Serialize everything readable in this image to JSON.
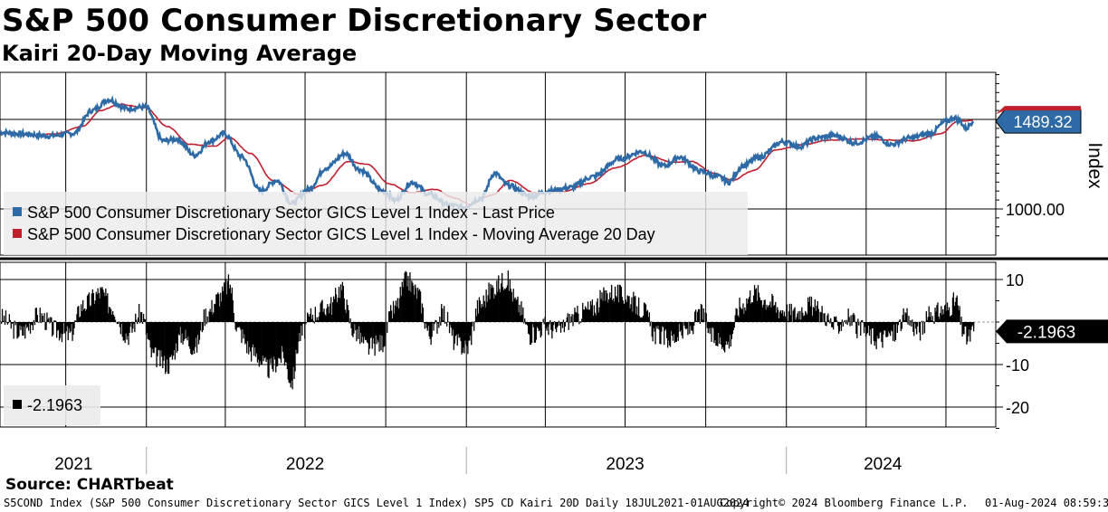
{
  "header": {
    "title": "S&P 500 Consumer Discretionary Sector",
    "subtitle": "Kairi 20-Day Moving Average"
  },
  "legend": {
    "price": "S&P 500 Consumer Discretionary Sector GICS Level 1 Index - Last Price",
    "ma": "S&P 500 Consumer Discretionary Sector GICS Level 1 Index - Moving Average 20 Day",
    "kairi": "-2.1963"
  },
  "footer": {
    "source": "Source: CHARTbeat",
    "description": "S5COND Index (S&P 500 Consumer Discretionary Sector GICS Level 1 Index) SP5 CD Kairi 20D  Daily 18JUL2021-01AUG2024",
    "copyright": "Copyright© 2024 Bloomberg Finance L.P.",
    "timestamp": "01-Aug-2024 08:59:30"
  },
  "colors": {
    "price": "#2e6aa5",
    "ma": "#c0202e",
    "kairi": "#000000"
  },
  "chart_data": [
    {
      "type": "line",
      "axis_label": "Index",
      "ylim": [
        800,
        1800
      ],
      "yticks": [
        {
          "value": 1000,
          "label": "1000.00"
        }
      ],
      "last_value_label": "1489.32",
      "years": [
        "2021",
        "2022",
        "2023",
        "2024"
      ],
      "year_starts": [
        "2022-01-01",
        "2023-01-01",
        "2024-01-01"
      ],
      "grid": true,
      "legend_position": "bottom-left",
      "series": [
        {
          "name": "S&P 500 Consumer Discretionary Sector GICS Level 1 Index - Last Price",
          "color": "#2e6aa5",
          "points": [
            [
              "2021-07-18",
              1428
            ],
            [
              "2021-08-15",
              1418
            ],
            [
              "2021-09-12",
              1408
            ],
            [
              "2021-10-10",
              1422
            ],
            [
              "2021-10-31",
              1550
            ],
            [
              "2021-11-19",
              1610
            ],
            [
              "2021-12-10",
              1560
            ],
            [
              "2021-12-31",
              1570
            ],
            [
              "2022-01-20",
              1380
            ],
            [
              "2022-02-05",
              1390
            ],
            [
              "2022-02-25",
              1300
            ],
            [
              "2022-03-15",
              1380
            ],
            [
              "2022-03-31",
              1420
            ],
            [
              "2022-04-20",
              1290
            ],
            [
              "2022-05-11",
              1100
            ],
            [
              "2022-05-30",
              1160
            ],
            [
              "2022-06-16",
              1030
            ],
            [
              "2022-07-05",
              1110
            ],
            [
              "2022-07-25",
              1230
            ],
            [
              "2022-08-16",
              1310
            ],
            [
              "2022-09-01",
              1220
            ],
            [
              "2022-09-28",
              1100
            ],
            [
              "2022-10-12",
              1050
            ],
            [
              "2022-10-31",
              1150
            ],
            [
              "2022-11-20",
              1080
            ],
            [
              "2022-12-13",
              1020
            ],
            [
              "2022-12-28",
              1010
            ],
            [
              "2023-01-18",
              1060
            ],
            [
              "2023-02-02",
              1200
            ],
            [
              "2023-02-18",
              1130
            ],
            [
              "2023-03-15",
              1070
            ],
            [
              "2023-04-05",
              1100
            ],
            [
              "2023-04-30",
              1120
            ],
            [
              "2023-05-25",
              1180
            ],
            [
              "2023-06-25",
              1280
            ],
            [
              "2023-07-20",
              1320
            ],
            [
              "2023-08-15",
              1240
            ],
            [
              "2023-09-01",
              1290
            ],
            [
              "2023-09-25",
              1210
            ],
            [
              "2023-10-15",
              1180
            ],
            [
              "2023-10-27",
              1150
            ],
            [
              "2023-11-12",
              1240
            ],
            [
              "2023-12-01",
              1290
            ],
            [
              "2023-12-28",
              1375
            ],
            [
              "2024-01-17",
              1350
            ],
            [
              "2024-02-03",
              1395
            ],
            [
              "2024-02-25",
              1410
            ],
            [
              "2024-03-20",
              1370
            ],
            [
              "2024-04-12",
              1405
            ],
            [
              "2024-04-30",
              1360
            ],
            [
              "2024-05-20",
              1395
            ],
            [
              "2024-06-12",
              1420
            ],
            [
              "2024-07-02",
              1490
            ],
            [
              "2024-07-10",
              1510
            ],
            [
              "2024-07-16",
              1495
            ],
            [
              "2024-07-24",
              1450
            ],
            [
              "2024-08-01",
              1489.32
            ]
          ]
        },
        {
          "name": "S&P 500 Consumer Discretionary Sector GICS Level 1 Index - Moving Average 20 Day",
          "color": "#c0202e",
          "points": [
            [
              "2021-07-18",
              1425
            ],
            [
              "2021-08-25",
              1412
            ],
            [
              "2021-09-20",
              1420
            ],
            [
              "2021-10-20",
              1460
            ],
            [
              "2021-11-10",
              1550
            ],
            [
              "2021-12-01",
              1585
            ],
            [
              "2021-12-31",
              1565
            ],
            [
              "2022-01-25",
              1460
            ],
            [
              "2022-02-20",
              1360
            ],
            [
              "2022-03-20",
              1350
            ],
            [
              "2022-04-05",
              1400
            ],
            [
              "2022-04-30",
              1310
            ],
            [
              "2022-05-25",
              1160
            ],
            [
              "2022-06-25",
              1080
            ],
            [
              "2022-07-20",
              1130
            ],
            [
              "2022-08-20",
              1265
            ],
            [
              "2022-09-10",
              1250
            ],
            [
              "2022-10-05",
              1140
            ],
            [
              "2022-10-31",
              1090
            ],
            [
              "2022-11-25",
              1110
            ],
            [
              "2022-12-20",
              1060
            ],
            [
              "2023-01-05",
              1025
            ],
            [
              "2023-01-31",
              1080
            ],
            [
              "2023-02-20",
              1160
            ],
            [
              "2023-03-20",
              1090
            ],
            [
              "2023-04-20",
              1095
            ],
            [
              "2023-05-20",
              1140
            ],
            [
              "2023-06-20",
              1230
            ],
            [
              "2023-07-25",
              1300
            ],
            [
              "2023-08-25",
              1260
            ],
            [
              "2023-09-15",
              1265
            ],
            [
              "2023-10-10",
              1200
            ],
            [
              "2023-10-31",
              1160
            ],
            [
              "2023-11-25",
              1215
            ],
            [
              "2023-12-20",
              1330
            ],
            [
              "2024-01-20",
              1360
            ],
            [
              "2024-02-20",
              1385
            ],
            [
              "2024-03-25",
              1390
            ],
            [
              "2024-04-25",
              1385
            ],
            [
              "2024-05-25",
              1380
            ],
            [
              "2024-06-25",
              1420
            ],
            [
              "2024-07-15",
              1490
            ],
            [
              "2024-08-01",
              1495
            ]
          ]
        }
      ]
    },
    {
      "type": "bar",
      "name": "Kairi 20D",
      "ylim": [
        -25,
        12
      ],
      "yticks": [
        10,
        -10,
        -20
      ],
      "zero_line": 0,
      "last_value_label": "-2.1963",
      "series": [
        {
          "name": "-2.1963",
          "color": "#000000",
          "points": [
            [
              "2021-07-18",
              1.0
            ],
            [
              "2021-08-10",
              -2.5
            ],
            [
              "2021-08-31",
              1.5
            ],
            [
              "2021-09-20",
              -2.0
            ],
            [
              "2021-10-05",
              -3.0
            ],
            [
              "2021-10-20",
              4.0
            ],
            [
              "2021-11-10",
              7.0
            ],
            [
              "2021-11-20",
              4.0
            ],
            [
              "2021-12-10",
              -3.0
            ],
            [
              "2021-12-25",
              2.0
            ],
            [
              "2022-01-08",
              -8.0
            ],
            [
              "2022-01-25",
              -10.0
            ],
            [
              "2022-02-10",
              -3.0
            ],
            [
              "2022-02-25",
              -6.0
            ],
            [
              "2022-03-10",
              2.0
            ],
            [
              "2022-03-25",
              6.0
            ],
            [
              "2022-04-05",
              9.0
            ],
            [
              "2022-04-15",
              -2.0
            ],
            [
              "2022-05-01",
              -7.0
            ],
            [
              "2022-05-20",
              -11.0
            ],
            [
              "2022-06-05",
              -8.0
            ],
            [
              "2022-06-15",
              -14.0
            ],
            [
              "2022-06-25",
              -3.0
            ],
            [
              "2022-07-10",
              2.0
            ],
            [
              "2022-07-30",
              4.0
            ],
            [
              "2022-08-10",
              8.0
            ],
            [
              "2022-08-25",
              -2.0
            ],
            [
              "2022-09-10",
              -6.0
            ],
            [
              "2022-09-25",
              -5.0
            ],
            [
              "2022-10-10",
              3.0
            ],
            [
              "2022-10-25",
              10.0
            ],
            [
              "2022-11-05",
              7.0
            ],
            [
              "2022-11-20",
              -3.0
            ],
            [
              "2022-12-05",
              2.0
            ],
            [
              "2022-12-20",
              -5.0
            ],
            [
              "2023-01-01",
              -6.0
            ],
            [
              "2023-01-15",
              4.0
            ],
            [
              "2023-01-31",
              8.0
            ],
            [
              "2023-02-15",
              10.0
            ],
            [
              "2023-02-28",
              4.0
            ],
            [
              "2023-03-15",
              -3.0
            ],
            [
              "2023-03-31",
              -1.0
            ],
            [
              "2023-04-15",
              -2.0
            ],
            [
              "2023-05-01",
              1.0
            ],
            [
              "2023-05-20",
              3.0
            ],
            [
              "2023-06-15",
              7.0
            ],
            [
              "2023-07-01",
              6.0
            ],
            [
              "2023-07-20",
              3.0
            ],
            [
              "2023-08-05",
              -3.0
            ],
            [
              "2023-08-20",
              -4.0
            ],
            [
              "2023-09-10",
              -2.0
            ],
            [
              "2023-09-25",
              2.0
            ],
            [
              "2023-10-10",
              -4.0
            ],
            [
              "2023-10-25",
              -5.0
            ],
            [
              "2023-11-10",
              4.0
            ],
            [
              "2023-11-25",
              7.0
            ],
            [
              "2023-12-10",
              5.0
            ],
            [
              "2023-12-25",
              3.0
            ],
            [
              "2024-01-10",
              2.0
            ],
            [
              "2024-01-25",
              4.0
            ],
            [
              "2024-02-10",
              2.0
            ],
            [
              "2024-02-25",
              -1.0
            ],
            [
              "2024-03-10",
              1.0
            ],
            [
              "2024-03-25",
              -2.0
            ],
            [
              "2024-04-15",
              -4.0
            ],
            [
              "2024-04-30",
              -3.0
            ],
            [
              "2024-05-15",
              1.0
            ],
            [
              "2024-05-31",
              -2.0
            ],
            [
              "2024-06-15",
              2.0
            ],
            [
              "2024-07-01",
              3.0
            ],
            [
              "2024-07-12",
              5.0
            ],
            [
              "2024-07-20",
              -2.0
            ],
            [
              "2024-07-25",
              -4.0
            ],
            [
              "2024-08-01",
              -2.1963
            ]
          ]
        }
      ]
    }
  ]
}
